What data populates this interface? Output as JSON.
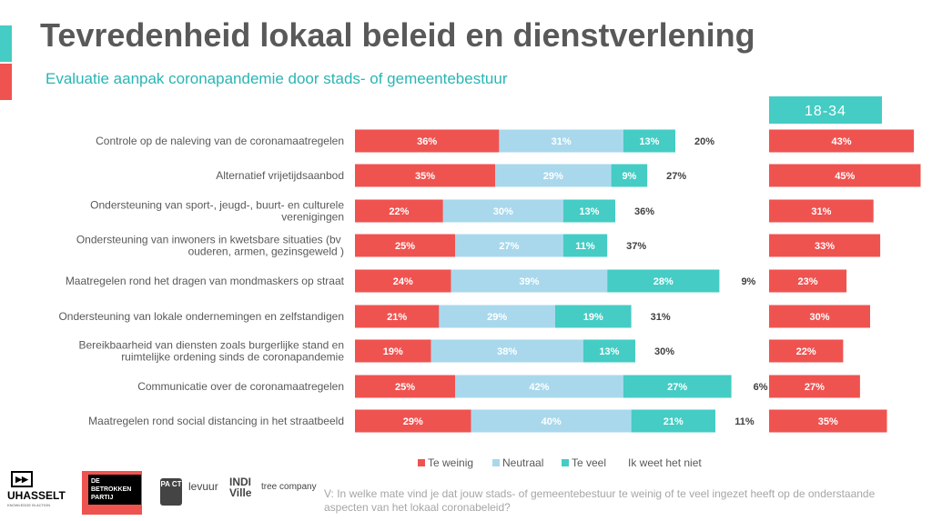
{
  "header": {
    "title": "Tevredenheid lokaal beleid en dienstverlening",
    "subtitle": "Evaluatie aanpak coronapandemie door stads- of gemeentebestuur"
  },
  "colors": {
    "te_weinig": "#ef5350",
    "neutraal": "#a9d8ec",
    "te_veel": "#45ccc4",
    "accent_teal": "#45ccc4",
    "accent_red": "#ef5350",
    "subtitle": "#2ab5b5",
    "label_text": "#595959"
  },
  "chart_data": [
    {
      "type": "bar",
      "stacked": true,
      "orientation": "horizontal",
      "categories": [
        "Controle op de naleving van de coronamaatregelen",
        "Alternatief vrijetijdsaanbod",
        "Ondersteuning van sport-, jeugd-, buurt- en culturele verenigingen",
        "Ondersteuning van inwoners in kwetsbare situaties (bv  ouderen, armen, gezinsgeweld    )",
        "Maatregelen rond het dragen van mondmaskers op straat",
        "Ondersteuning van lokale ondernemingen en zelfstandigen",
        "Bereikbaarheid van diensten zoals burgerlijke stand en ruimtelijke ordening sinds de coronapandemie",
        "Communicatie over de coronamaatregelen",
        "Maatregelen rond social distancing in het straatbeeld"
      ],
      "series": [
        {
          "name": "Te weinig",
          "values": [
            36,
            35,
            22,
            25,
            24,
            21,
            19,
            25,
            29
          ]
        },
        {
          "name": "Neutraal",
          "values": [
            31,
            29,
            30,
            27,
            39,
            29,
            38,
            42,
            40
          ]
        },
        {
          "name": "Te veel",
          "values": [
            13,
            9,
            13,
            11,
            28,
            19,
            13,
            27,
            21
          ]
        },
        {
          "name": "Ik weet het niet",
          "values": [
            20,
            27,
            36,
            37,
            9,
            31,
            30,
            6,
            11
          ]
        }
      ],
      "xlim": [
        0,
        100
      ],
      "value_suffix": "%",
      "legend_position": "bottom"
    },
    {
      "type": "bar",
      "orientation": "horizontal",
      "title": "18-34",
      "series": [
        {
          "name": "Te weinig",
          "values": [
            43,
            45,
            31,
            33,
            23,
            30,
            22,
            27,
            35
          ]
        }
      ],
      "xlim": [
        0,
        100
      ],
      "value_suffix": "%"
    }
  ],
  "question": "V: In welke mate vind je dat jouw stads- of gemeentebestuur te weinig of te veel ingezet heeft op de onderstaande aspecten van het lokaal coronabeleid?",
  "logos": {
    "uhasselt": {
      "mark": "▶▶",
      "name": "UHASSELT",
      "tagline": "KNOWLEDGE IN ACTION"
    },
    "betrokken_partij": "DE BETROKKEN PARTIJ",
    "pact": "PA CT",
    "levuur": "levuur",
    "indiville": "INDI Ville",
    "tree_company": "tree company"
  }
}
